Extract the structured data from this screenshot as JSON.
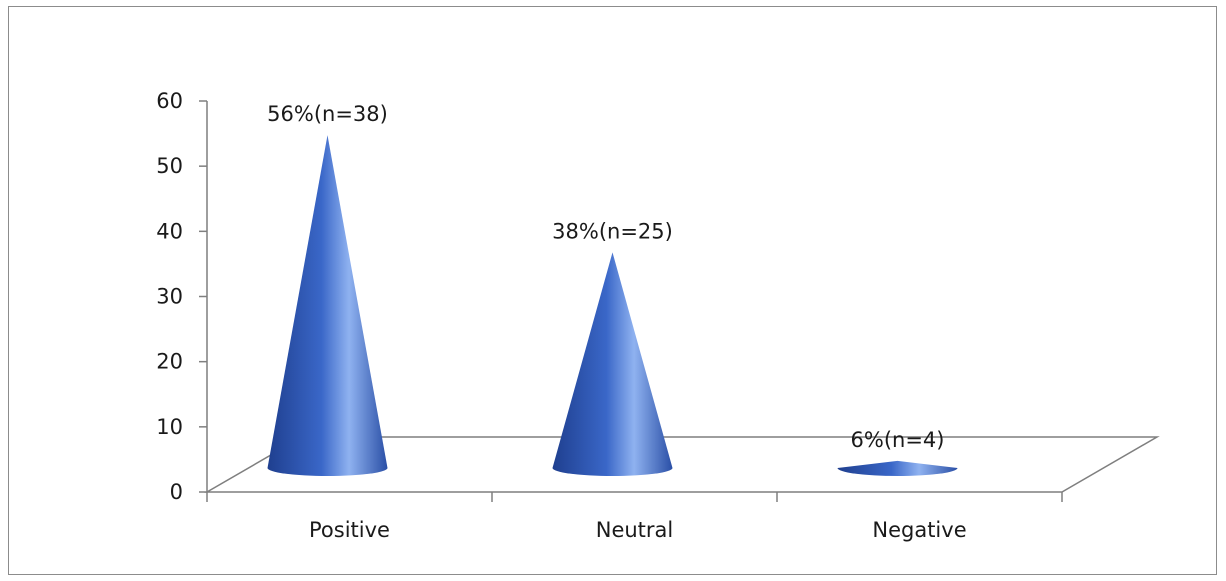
{
  "chart_data": {
    "type": "bar",
    "shape": "cone",
    "style": "3d",
    "categories": [
      "Positive",
      "Neutral",
      "Negative"
    ],
    "values": [
      56,
      38,
      6
    ],
    "data_labels": [
      "56%(n=38)",
      "38%(n=25)",
      "6%(n=4)"
    ],
    "ylim": [
      0,
      60
    ],
    "yticks": [
      0,
      10,
      20,
      30,
      40,
      50,
      60
    ],
    "ytick_labels": [
      "0",
      "10",
      "20",
      "30",
      "40",
      "50",
      "60"
    ],
    "title": "",
    "xlabel": "",
    "ylabel": "",
    "grid": false,
    "legend": "none",
    "colors": {
      "cone_dark": "#1f3f8f",
      "cone_mid": "#3a67c8",
      "cone_light": "#8fb2f0",
      "axis": "#7f7f7f"
    }
  }
}
